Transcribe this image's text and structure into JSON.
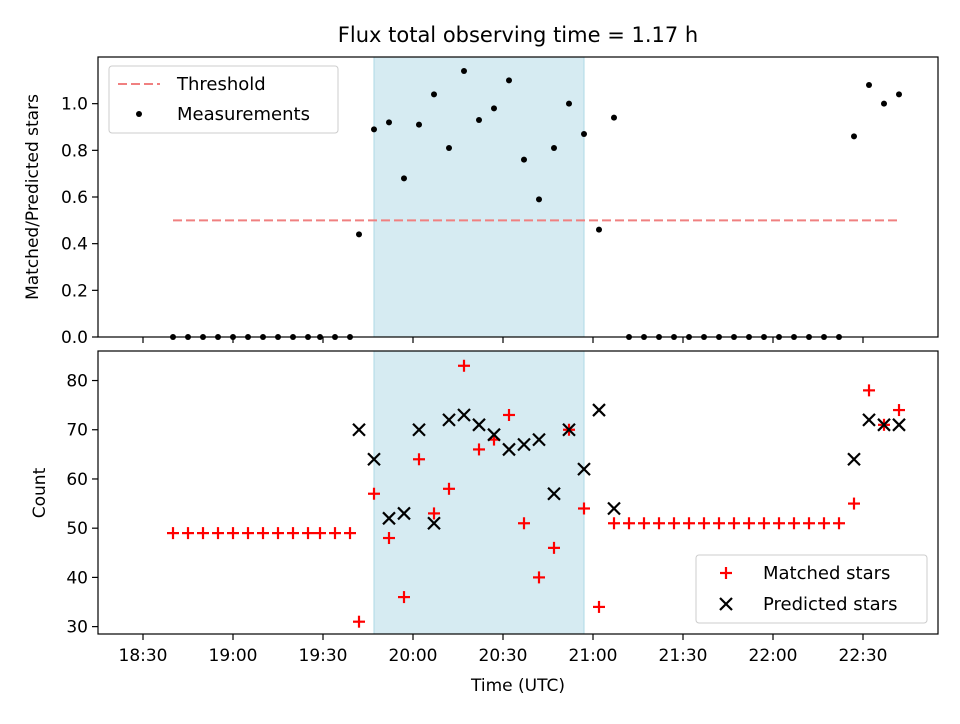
{
  "title": "Flux total observing time = 1.17 h",
  "colors": {
    "threshold": "#f08080",
    "measurement": "#000000",
    "matched": "#ff0000",
    "predicted": "#000000",
    "span": "#add8e6"
  },
  "chart_data": [
    {
      "type": "scatter",
      "title": "Flux total observing time = 1.17 h",
      "ylabel": "Matched/Predicted stars",
      "ylim": [
        0,
        1.2
      ],
      "yticks": [
        "0.0",
        "0.2",
        "0.4",
        "0.6",
        "0.8",
        "1.0"
      ],
      "grid": false,
      "legend_position": "top-left",
      "threshold": {
        "name": "Threshold",
        "value": 0.5,
        "x_start": "18:40",
        "x_end": "22:42"
      },
      "highlight_span": {
        "x_start": "19:47",
        "x_end": "20:57"
      },
      "series": [
        {
          "name": "Measurements",
          "points": [
            [
              "18:40",
              0
            ],
            [
              "18:45",
              0
            ],
            [
              "18:50",
              0
            ],
            [
              "18:55",
              0
            ],
            [
              "19:00",
              0
            ],
            [
              "19:05",
              0
            ],
            [
              "19:10",
              0
            ],
            [
              "19:15",
              0
            ],
            [
              "19:20",
              0
            ],
            [
              "19:25",
              0
            ],
            [
              "19:29",
              0
            ],
            [
              "19:34",
              0
            ],
            [
              "19:39",
              0
            ],
            [
              "19:42",
              0.44
            ],
            [
              "19:47",
              0.89
            ],
            [
              "19:52",
              0.92
            ],
            [
              "19:57",
              0.68
            ],
            [
              "20:02",
              0.91
            ],
            [
              "20:07",
              1.04
            ],
            [
              "20:12",
              0.81
            ],
            [
              "20:17",
              1.14
            ],
            [
              "20:22",
              0.93
            ],
            [
              "20:27",
              0.98
            ],
            [
              "20:32",
              1.1
            ],
            [
              "20:37",
              0.76
            ],
            [
              "20:42",
              0.59
            ],
            [
              "20:47",
              0.81
            ],
            [
              "20:52",
              1.0
            ],
            [
              "20:57",
              0.87
            ],
            [
              "21:02",
              0.46
            ],
            [
              "21:07",
              0.94
            ],
            [
              "21:12",
              0
            ],
            [
              "21:17",
              0
            ],
            [
              "21:22",
              0
            ],
            [
              "21:27",
              0
            ],
            [
              "21:32",
              0
            ],
            [
              "21:37",
              0
            ],
            [
              "21:42",
              0
            ],
            [
              "21:47",
              0
            ],
            [
              "21:52",
              0
            ],
            [
              "21:57",
              0
            ],
            [
              "22:02",
              0
            ],
            [
              "22:07",
              0
            ],
            [
              "22:12",
              0
            ],
            [
              "22:17",
              0
            ],
            [
              "22:22",
              0
            ],
            [
              "22:27",
              0.86
            ],
            [
              "22:32",
              1.08
            ],
            [
              "22:37",
              1.0
            ],
            [
              "22:42",
              1.04
            ]
          ]
        }
      ]
    },
    {
      "type": "scatter",
      "xlabel": "Time (UTC)",
      "ylabel": "Count",
      "ylim": [
        28.5,
        86
      ],
      "yticks": [
        "30",
        "40",
        "50",
        "60",
        "70",
        "80"
      ],
      "xticks": [
        "18:30",
        "19:00",
        "19:30",
        "20:00",
        "20:30",
        "21:00",
        "21:30",
        "22:00",
        "22:30"
      ],
      "grid": false,
      "legend_position": "bottom-right",
      "highlight_span": {
        "x_start": "19:47",
        "x_end": "20:57"
      },
      "series": [
        {
          "name": "Matched stars",
          "marker": "+",
          "points": [
            [
              "18:40",
              49
            ],
            [
              "18:45",
              49
            ],
            [
              "18:50",
              49
            ],
            [
              "18:55",
              49
            ],
            [
              "19:00",
              49
            ],
            [
              "19:05",
              49
            ],
            [
              "19:10",
              49
            ],
            [
              "19:15",
              49
            ],
            [
              "19:20",
              49
            ],
            [
              "19:25",
              49
            ],
            [
              "19:29",
              49
            ],
            [
              "19:34",
              49
            ],
            [
              "19:39",
              49
            ],
            [
              "19:42",
              31
            ],
            [
              "19:47",
              57
            ],
            [
              "19:52",
              48
            ],
            [
              "19:57",
              36
            ],
            [
              "20:02",
              64
            ],
            [
              "20:07",
              53
            ],
            [
              "20:12",
              58
            ],
            [
              "20:17",
              83
            ],
            [
              "20:22",
              66
            ],
            [
              "20:27",
              68
            ],
            [
              "20:32",
              73
            ],
            [
              "20:37",
              51
            ],
            [
              "20:42",
              40
            ],
            [
              "20:47",
              46
            ],
            [
              "20:52",
              70
            ],
            [
              "20:57",
              54
            ],
            [
              "21:02",
              34
            ],
            [
              "21:07",
              51
            ],
            [
              "21:12",
              51
            ],
            [
              "21:17",
              51
            ],
            [
              "21:22",
              51
            ],
            [
              "21:27",
              51
            ],
            [
              "21:32",
              51
            ],
            [
              "21:37",
              51
            ],
            [
              "21:42",
              51
            ],
            [
              "21:47",
              51
            ],
            [
              "21:52",
              51
            ],
            [
              "21:57",
              51
            ],
            [
              "22:02",
              51
            ],
            [
              "22:07",
              51
            ],
            [
              "22:12",
              51
            ],
            [
              "22:17",
              51
            ],
            [
              "22:22",
              51
            ],
            [
              "22:27",
              55
            ],
            [
              "22:32",
              78
            ],
            [
              "22:37",
              71
            ],
            [
              "22:42",
              74
            ]
          ]
        },
        {
          "name": "Predicted stars",
          "marker": "x",
          "points": [
            [
              "19:42",
              70
            ],
            [
              "19:47",
              64
            ],
            [
              "19:52",
              52
            ],
            [
              "19:57",
              53
            ],
            [
              "20:02",
              70
            ],
            [
              "20:07",
              51
            ],
            [
              "20:12",
              72
            ],
            [
              "20:17",
              73
            ],
            [
              "20:22",
              71
            ],
            [
              "20:27",
              69
            ],
            [
              "20:32",
              66
            ],
            [
              "20:37",
              67
            ],
            [
              "20:42",
              68
            ],
            [
              "20:47",
              57
            ],
            [
              "20:52",
              70
            ],
            [
              "20:57",
              62
            ],
            [
              "21:02",
              74
            ],
            [
              "21:07",
              54
            ],
            [
              "22:27",
              64
            ],
            [
              "22:32",
              72
            ],
            [
              "22:37",
              71
            ],
            [
              "22:42",
              71
            ]
          ]
        }
      ]
    }
  ]
}
